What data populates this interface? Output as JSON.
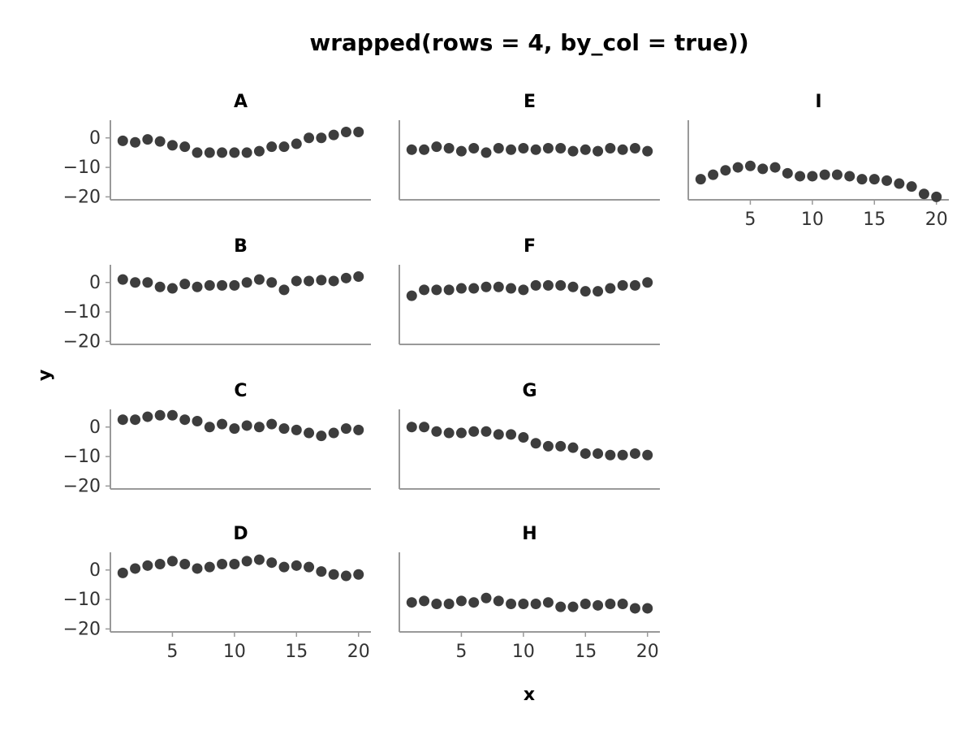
{
  "chart_data": {
    "type": "scatter",
    "title": "wrapped(rows = 4, by_col = true))",
    "xlabel": "x",
    "ylabel": "y",
    "xlim": [
      0,
      21
    ],
    "ylim": [
      -21,
      6
    ],
    "xticks": [
      5,
      10,
      15,
      20
    ],
    "yticks": [
      0,
      -10,
      -20
    ],
    "grid": false,
    "point_color": "#3d3d3d",
    "x": [
      1,
      2,
      3,
      4,
      5,
      6,
      7,
      8,
      9,
      10,
      11,
      12,
      13,
      14,
      15,
      16,
      17,
      18,
      19,
      20
    ],
    "facets": [
      {
        "name": "A",
        "values": [
          -1,
          -1.5,
          -0.5,
          -1.2,
          -2.5,
          -3,
          -5,
          -5,
          -5,
          -5,
          -5,
          -4.5,
          -3,
          -3,
          -2,
          0,
          0,
          1,
          2,
          2
        ]
      },
      {
        "name": "B",
        "values": [
          1,
          0,
          0,
          -1.5,
          -2,
          -0.5,
          -1.5,
          -1,
          -1,
          -1,
          0,
          1,
          0,
          -2.5,
          0.5,
          0.5,
          0.8,
          0.5,
          1.5,
          2
        ]
      },
      {
        "name": "C",
        "values": [
          2.5,
          2.5,
          3.5,
          4,
          4,
          2.5,
          2,
          0,
          1,
          -0.5,
          0.5,
          0,
          1,
          -0.5,
          -1,
          -2,
          -3,
          -2,
          -0.5,
          -1
        ]
      },
      {
        "name": "D",
        "values": [
          -1,
          0.5,
          1.5,
          2,
          3,
          2,
          0.5,
          1,
          2,
          2,
          3,
          3.5,
          2.5,
          1,
          1.5,
          1,
          -0.5,
          -1.5,
          -2,
          -1.5
        ]
      },
      {
        "name": "E",
        "values": [
          -4,
          -4,
          -3,
          -3.5,
          -4.5,
          -3.5,
          -5,
          -3.5,
          -4,
          -3.5,
          -4,
          -3.5,
          -3.5,
          -4.5,
          -4,
          -4.5,
          -3.5,
          -4,
          -3.5,
          -4.5
        ]
      },
      {
        "name": "F",
        "values": [
          -4.5,
          -2.5,
          -2.5,
          -2.5,
          -2,
          -2,
          -1.5,
          -1.5,
          -2,
          -2.5,
          -1,
          -1,
          -1,
          -1.5,
          -3,
          -3,
          -2,
          -1,
          -1,
          0
        ]
      },
      {
        "name": "G",
        "values": [
          0,
          0,
          -1.5,
          -2,
          -2,
          -1.5,
          -1.5,
          -2.5,
          -2.5,
          -3.5,
          -5.5,
          -6.5,
          -6.5,
          -7,
          -9,
          -9,
          -9.5,
          -9.5,
          -9,
          -9.5
        ]
      },
      {
        "name": "H",
        "values": [
          -11,
          -10.5,
          -11.5,
          -11.5,
          -10.5,
          -11,
          -9.5,
          -10.5,
          -11.5,
          -11.5,
          -11.5,
          -11,
          -12.5,
          -12.5,
          -11.5,
          -12,
          -11.5,
          -11.5,
          -13,
          -13
        ]
      },
      {
        "name": "I",
        "values": [
          -14,
          -12.5,
          -11,
          -10,
          -9.5,
          -10.5,
          -10,
          -12,
          -13,
          -13,
          -12.5,
          -12.5,
          -13,
          -14,
          -14,
          -14.5,
          -15.5,
          -16.5,
          -19,
          -20
        ]
      }
    ]
  }
}
